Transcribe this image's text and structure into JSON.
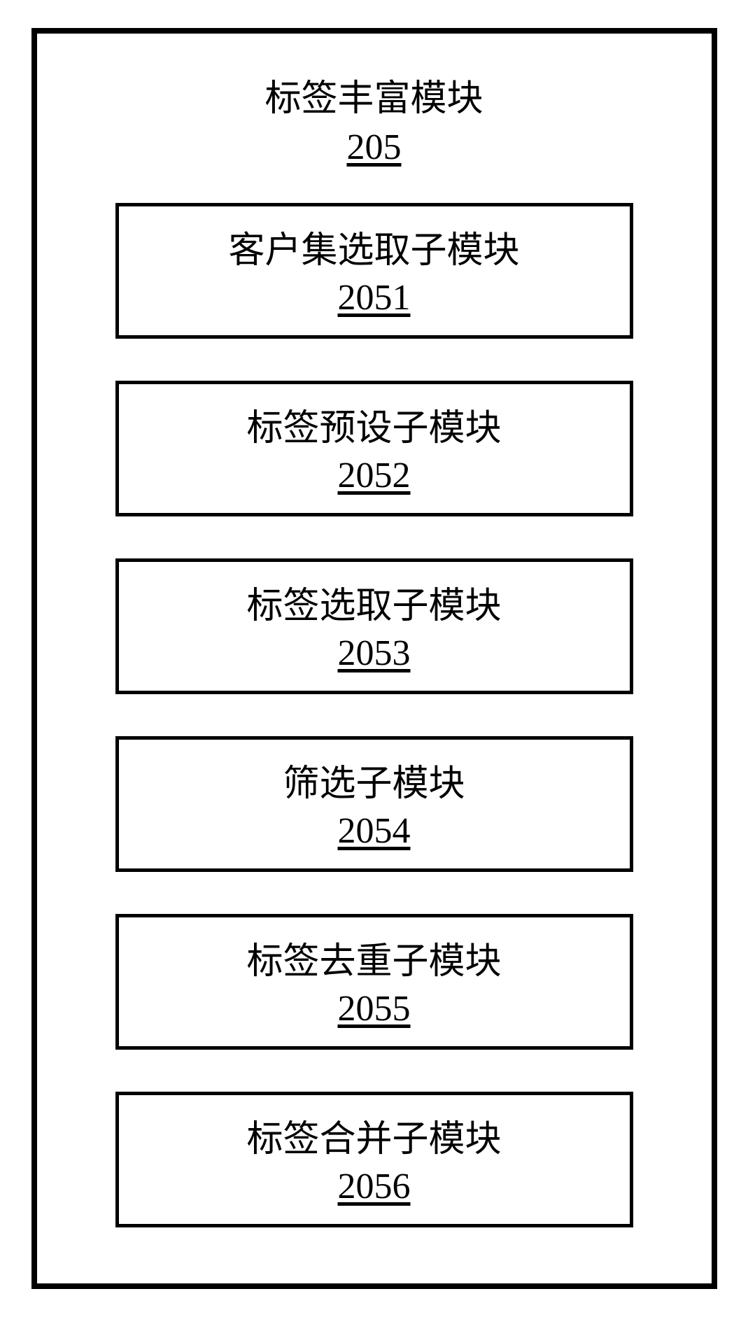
{
  "diagram": {
    "type": "block-diagram",
    "outer_border_width": 8,
    "inner_border_width": 5,
    "border_color": "#000000",
    "background_color": "#ffffff",
    "text_color": "#000000",
    "title_fontsize": 52,
    "number_fontsize": 52,
    "font_family": "SimSun",
    "header": {
      "title": "标签丰富模块",
      "number": "205"
    },
    "modules": [
      {
        "title": "客户集选取子模块",
        "number": "2051"
      },
      {
        "title": "标签预设子模块",
        "number": "2052"
      },
      {
        "title": "标签选取子模块",
        "number": "2053"
      },
      {
        "title": "筛选子模块",
        "number": "2054"
      },
      {
        "title": "标签去重子模块",
        "number": "2055"
      },
      {
        "title": "标签合并子模块",
        "number": "2056"
      }
    ]
  }
}
